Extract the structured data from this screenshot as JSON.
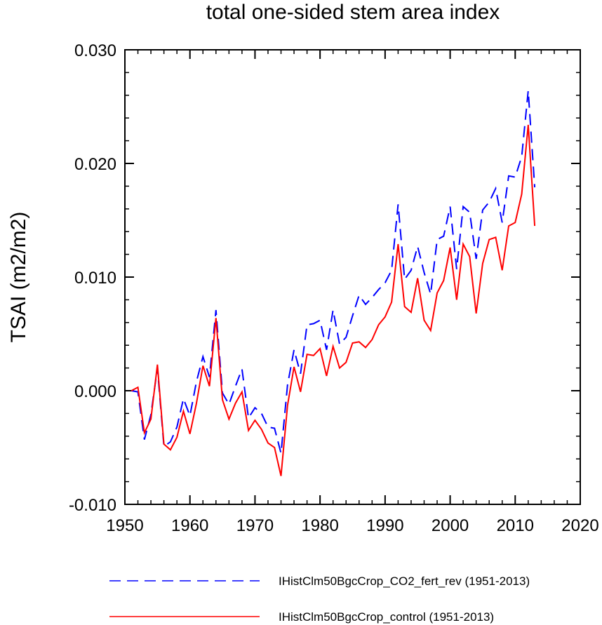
{
  "chart_data": {
    "type": "line",
    "title": "total one-sided stem area index",
    "xlabel": "",
    "ylabel": "TSAI  (m2/m2)",
    "xlim": [
      1950,
      2020
    ],
    "ylim": [
      -0.01,
      0.03
    ],
    "x_ticks": [
      1950,
      1960,
      1970,
      1980,
      1990,
      2000,
      2010,
      2020
    ],
    "x_tick_labels": [
      "1950",
      "1960",
      "1970",
      "1980",
      "1990",
      "2000",
      "2010",
      "2020"
    ],
    "y_ticks": [
      -0.01,
      0.0,
      0.01,
      0.02,
      0.03
    ],
    "y_tick_labels": [
      "-0.010",
      "0.000",
      "0.010",
      "0.020",
      "0.030"
    ],
    "grid": false,
    "legend_position": "bottom",
    "x": [
      1951,
      1952,
      1953,
      1954,
      1955,
      1956,
      1957,
      1958,
      1959,
      1960,
      1961,
      1962,
      1963,
      1964,
      1965,
      1966,
      1967,
      1968,
      1969,
      1970,
      1971,
      1972,
      1973,
      1974,
      1975,
      1976,
      1977,
      1978,
      1979,
      1980,
      1981,
      1982,
      1983,
      1984,
      1985,
      1986,
      1987,
      1988,
      1989,
      1990,
      1991,
      1992,
      1993,
      1994,
      1995,
      1996,
      1997,
      1998,
      1999,
      2000,
      2001,
      2002,
      2003,
      2004,
      2005,
      2006,
      2007,
      2008,
      2009,
      2010,
      2011,
      2012,
      2013
    ],
    "series": [
      {
        "name": "IHistClm50BgcCrop_CO2_fert_rev (1951-2013)",
        "color": "#0000ff",
        "dash": "dashed",
        "values": [
          0.0,
          -0.0001,
          -0.0043,
          -0.0021,
          0.002,
          -0.0049,
          -0.0045,
          -0.0032,
          -0.0007,
          -0.0022,
          0.0008,
          0.003,
          0.0012,
          0.0071,
          -0.0002,
          -0.0012,
          0.0004,
          0.0019,
          -0.0024,
          -0.0015,
          -0.002,
          -0.0032,
          -0.0033,
          -0.0055,
          0.0005,
          0.0036,
          0.0015,
          0.0058,
          0.0059,
          0.0062,
          0.0036,
          0.0071,
          0.0041,
          0.0047,
          0.0066,
          0.0084,
          0.0076,
          0.0082,
          0.0089,
          0.0095,
          0.0106,
          0.0164,
          0.0098,
          0.0106,
          0.0127,
          0.0104,
          0.0085,
          0.0133,
          0.0136,
          0.0162,
          0.0107,
          0.0162,
          0.0157,
          0.0116,
          0.0159,
          0.0166,
          0.0178,
          0.0148,
          0.0189,
          0.0188,
          0.0206,
          0.0264,
          0.0179
        ]
      },
      {
        "name": "IHistClm50BgcCrop_control (1951-2013)",
        "color": "#ff0000",
        "dash": "solid",
        "values": [
          0.0,
          0.0003,
          -0.0037,
          -0.0025,
          0.0023,
          -0.0047,
          -0.0052,
          -0.0041,
          -0.0018,
          -0.0038,
          -0.0011,
          0.0022,
          0.0004,
          0.0064,
          -0.0008,
          -0.0025,
          -0.0011,
          -0.0001,
          -0.0035,
          -0.0026,
          -0.0034,
          -0.0046,
          -0.005,
          -0.0075,
          -0.0013,
          0.0021,
          -0.0001,
          0.0032,
          0.0031,
          0.0037,
          0.0013,
          0.0039,
          0.002,
          0.0025,
          0.0042,
          0.0043,
          0.0038,
          0.0045,
          0.0058,
          0.0065,
          0.0078,
          0.0129,
          0.0074,
          0.0069,
          0.0099,
          0.0062,
          0.0053,
          0.0086,
          0.0097,
          0.0126,
          0.008,
          0.0129,
          0.0118,
          0.0068,
          0.0112,
          0.0133,
          0.0135,
          0.0106,
          0.0145,
          0.0148,
          0.0173,
          0.0234,
          0.0145
        ]
      }
    ]
  }
}
